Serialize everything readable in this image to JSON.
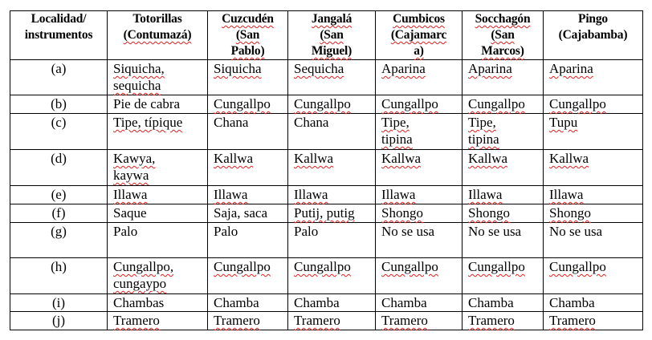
{
  "headers": [
    {
      "text": "Localidad/\ninstrumentos",
      "flagged": false
    },
    {
      "text": "Totorillas\n(Contumazá)",
      "flagged": true
    },
    {
      "text": "Cuzcudén\n(San\nPablo)",
      "flagged": true
    },
    {
      "text": "Jangalá\n(San\nMiguel)",
      "flagged": true
    },
    {
      "text": "Cumbicos\n(Cajamarc\na)",
      "flagged": true
    },
    {
      "text": "Socchagón\n(San\nMarcos)",
      "flagged": true
    },
    {
      "text": "Pingo\n(Cajabamba)",
      "flagged": false
    }
  ],
  "rows": [
    {
      "label": "(a)",
      "cells": [
        {
          "text": "Siquicha,\nsequicha",
          "flagged": true
        },
        {
          "text": "Siquicha",
          "flagged": true
        },
        {
          "text": "Sequicha",
          "flagged": true
        },
        {
          "text": "Aparina",
          "flagged": true
        },
        {
          "text": "Aparina",
          "flagged": true
        },
        {
          "text": "Aparina",
          "flagged": true
        }
      ]
    },
    {
      "label": "(b)",
      "cells": [
        {
          "text": "Pie de cabra",
          "flagged": false
        },
        {
          "text": "Cungallpo",
          "flagged": true
        },
        {
          "text": "Cungallpo",
          "flagged": true
        },
        {
          "text": "Cungallpo",
          "flagged": true
        },
        {
          "text": "Cungallpo",
          "flagged": true
        },
        {
          "text": "Cungallpo",
          "flagged": true
        }
      ]
    },
    {
      "label": "(c)",
      "cells": [
        {
          "text": "Tipe, típique",
          "flagged": true
        },
        {
          "text": "Chana",
          "flagged": false
        },
        {
          "text": "Chana",
          "flagged": false
        },
        {
          "text": "Tipe,\ntipina",
          "flagged": true
        },
        {
          "text": "Tipe,\ntipina",
          "flagged": true
        },
        {
          "text": "Tupu",
          "flagged": true
        }
      ]
    },
    {
      "label": "(d)",
      "cells": [
        {
          "text": "Kawya,\nkaywa",
          "flagged": true
        },
        {
          "text": "Kallwa",
          "flagged": true
        },
        {
          "text": "Kallwa",
          "flagged": true
        },
        {
          "text": "Kallwa",
          "flagged": true
        },
        {
          "text": "Kallwa",
          "flagged": true
        },
        {
          "text": "Kallwa",
          "flagged": true
        }
      ]
    },
    {
      "label": "(e)",
      "cells": [
        {
          "text": "Illawa",
          "flagged": true
        },
        {
          "text": "Illawa",
          "flagged": true
        },
        {
          "text": "Illawa",
          "flagged": true
        },
        {
          "text": "Illawa",
          "flagged": true
        },
        {
          "text": "Illawa",
          "flagged": true
        },
        {
          "text": "Illawa",
          "flagged": true
        }
      ]
    },
    {
      "label": "(f)",
      "cells": [
        {
          "text": "Saque",
          "flagged": false
        },
        {
          "text": "Saja, saca",
          "flagged": false
        },
        {
          "text": "Putij, putig",
          "flagged": true
        },
        {
          "text": "Shongo",
          "flagged": true
        },
        {
          "text": "Shongo",
          "flagged": true
        },
        {
          "text": "Shongo",
          "flagged": true
        }
      ]
    },
    {
      "label": "(g)",
      "cells": [
        {
          "text": "Palo",
          "flagged": false
        },
        {
          "text": "Palo",
          "flagged": false
        },
        {
          "text": "Palo",
          "flagged": false
        },
        {
          "text": "No se usa",
          "flagged": false
        },
        {
          "text": "No se usa",
          "flagged": false
        },
        {
          "text": "No se usa",
          "flagged": false
        }
      ]
    },
    {
      "label": "(h)",
      "cells": [
        {
          "text": "Cungallpo,\ncungaypo",
          "flagged": true
        },
        {
          "text": "Cungallpo",
          "flagged": true
        },
        {
          "text": "Cungallpo",
          "flagged": true
        },
        {
          "text": "Cungallpo",
          "flagged": true
        },
        {
          "text": "Cungallpo",
          "flagged": true
        },
        {
          "text": "Cungallpo",
          "flagged": true
        }
      ]
    },
    {
      "label": "(i)",
      "cells": [
        {
          "text": "Chambas",
          "flagged": false
        },
        {
          "text": "Chamba",
          "flagged": false
        },
        {
          "text": "Chamba",
          "flagged": false
        },
        {
          "text": "Chamba",
          "flagged": false
        },
        {
          "text": "Chamba",
          "flagged": false
        },
        {
          "text": "Chamba",
          "flagged": false
        }
      ]
    },
    {
      "label": "(j)",
      "cells": [
        {
          "text": "Tramero",
          "flagged": true
        },
        {
          "text": "Tramero",
          "flagged": true
        },
        {
          "text": "Tramero",
          "flagged": true
        },
        {
          "text": "Tramero",
          "flagged": true
        },
        {
          "text": "Tramero",
          "flagged": true
        },
        {
          "text": "Tramero",
          "flagged": true
        }
      ]
    }
  ],
  "spellcheck_color": "#e02020"
}
